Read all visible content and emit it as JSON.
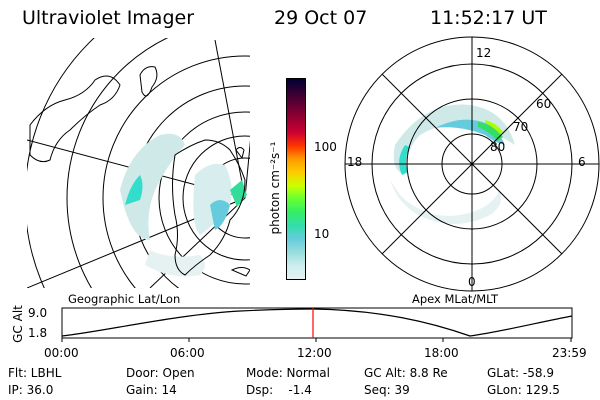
{
  "header": {
    "instrument": "Ultraviolet Imager",
    "date": "29 Oct 07",
    "time": "11:52:17 UT"
  },
  "colorbar": {
    "label": "photon cm⁻²s⁻¹",
    "ticks": [
      "100",
      "10"
    ],
    "colors": [
      "#000033",
      "#330033",
      "#660033",
      "#990033",
      "#cc0033",
      "#ff3300",
      "#ff9900",
      "#ffcc00",
      "#ccff00",
      "#66ff33",
      "#33ee66",
      "#33ddaa",
      "#66ccdd",
      "#99dddd",
      "#cceeee",
      "#e6f2f2"
    ]
  },
  "geo_map": {
    "caption": "Geographic Lat/Lon"
  },
  "polar_map": {
    "caption": "Apex MLat/MLT",
    "mlt_labels": {
      "top": "12",
      "left": "18",
      "right": "6",
      "bottom": "0"
    },
    "lat_labels": [
      "60",
      "70",
      "80"
    ]
  },
  "altitude_plot": {
    "ylabel": "GC Alt",
    "yticks": [
      "9.0",
      "1.8"
    ],
    "xticks": [
      "00:00",
      "06:00",
      "12:00",
      "18:00",
      "23:59"
    ],
    "current_time_marker_color": "#ff0000"
  },
  "info": {
    "flt": "Flt: LBHL",
    "ip": "IP: 36.0",
    "door": "Door: Open",
    "gain": "Gain: 14",
    "mode": "Mode: Normal",
    "dsp": "Dsp:    -1.4",
    "gcalt": "GC Alt: 8.8 Re",
    "seq": "Seq: 39",
    "glat": "GLat: -58.9",
    "glon": "GLon: 129.5"
  }
}
